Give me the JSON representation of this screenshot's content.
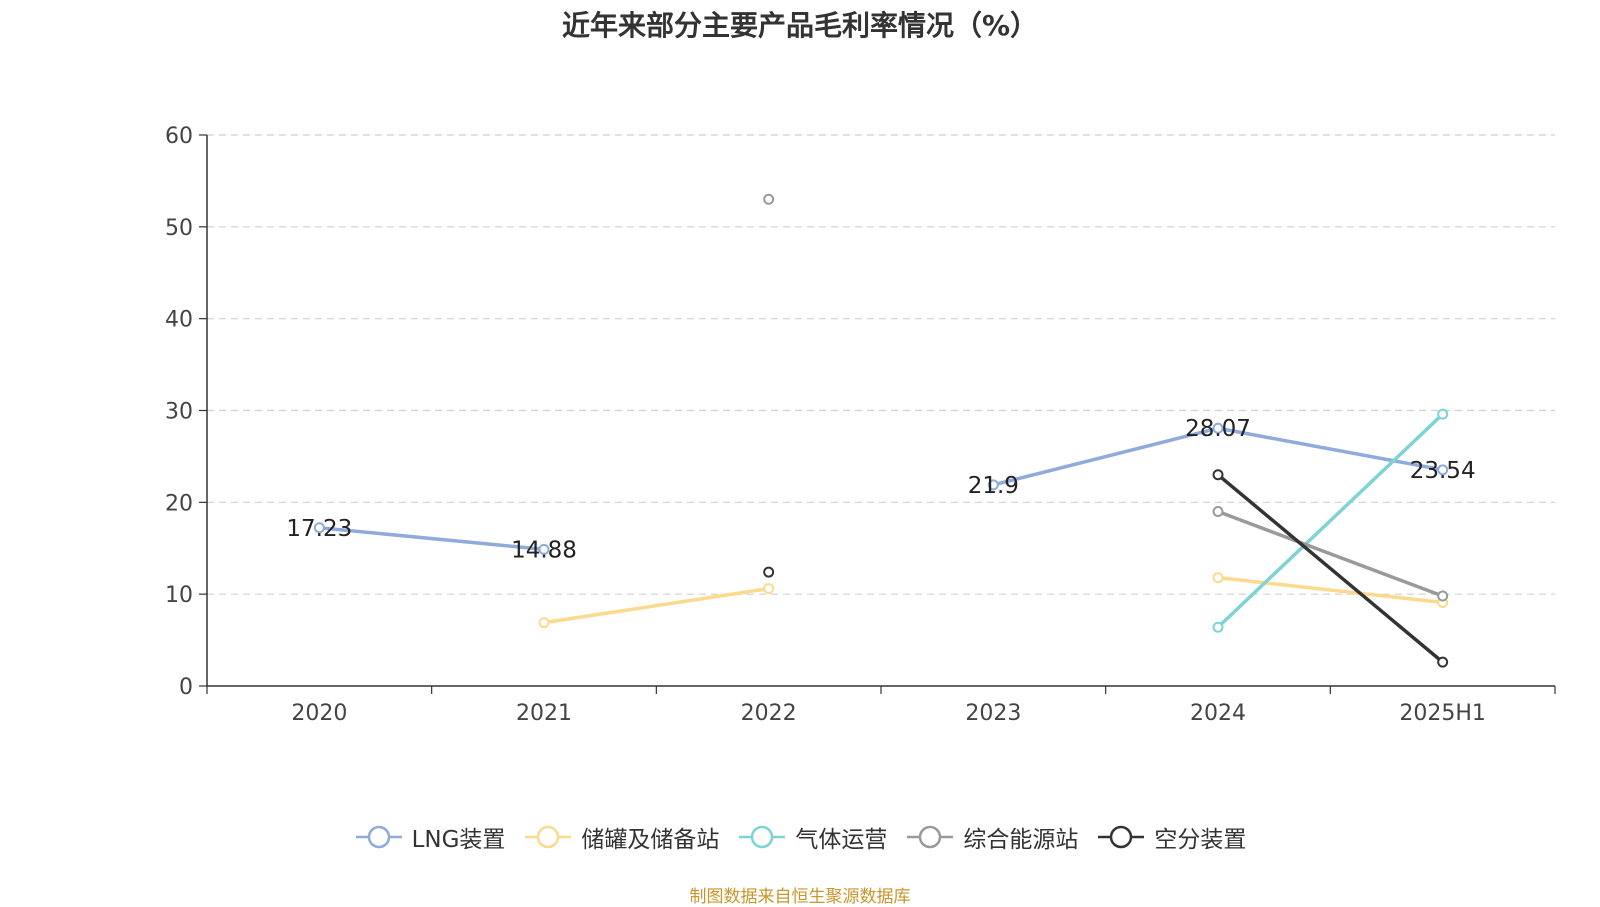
{
  "chart_data": {
    "type": "line",
    "title": "近年来部分主要产品毛利率情况（%）",
    "categories": [
      "2020",
      "2021",
      "2022",
      "2023",
      "2024",
      "2025H1"
    ],
    "ylim": [
      0,
      60
    ],
    "yticks": [
      "0",
      "10",
      "20",
      "30",
      "40",
      "50",
      "60"
    ],
    "grid": true,
    "legend_position": "bottom",
    "series": [
      {
        "name": "LNG装置",
        "color": "#8fabdb",
        "values": [
          17.23,
          14.88,
          null,
          21.9,
          28.07,
          23.54
        ],
        "labels": [
          "17.23",
          "14.88",
          "",
          "21.9",
          "28.07",
          "23.54"
        ]
      },
      {
        "name": "储罐及储备站",
        "color": "#fbd98d",
        "values": [
          null,
          6.9,
          10.6,
          null,
          11.8,
          9.1
        ],
        "labels": []
      },
      {
        "name": "气体运营",
        "color": "#7ed3d5",
        "values": [
          null,
          null,
          null,
          null,
          6.4,
          29.6
        ],
        "labels": []
      },
      {
        "name": "综合能源站",
        "color": "#9a9a9a",
        "values": [
          null,
          null,
          53.0,
          null,
          19.0,
          9.8
        ],
        "labels": []
      },
      {
        "name": "空分装置",
        "color": "#333333",
        "values": [
          null,
          null,
          12.4,
          null,
          23.0,
          2.6
        ],
        "labels": []
      }
    ]
  },
  "source_note": "制图数据来自恒生聚源数据库"
}
